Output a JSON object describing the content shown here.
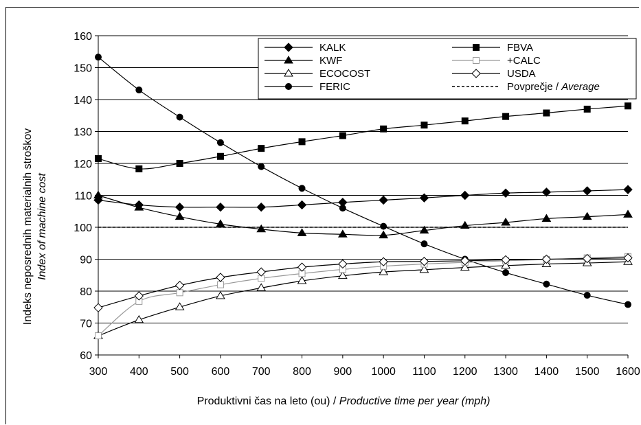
{
  "chart_data": {
    "type": "line",
    "x": [
      300,
      400,
      500,
      600,
      700,
      800,
      900,
      1000,
      1100,
      1200,
      1300,
      1400,
      1500,
      1600
    ],
    "xlim": [
      300,
      1600
    ],
    "ylim": [
      60,
      160
    ],
    "x_ticks": [
      "300",
      "400",
      "500",
      "600",
      "700",
      "800",
      "900",
      "1000",
      "1100",
      "1200",
      "1300",
      "1400",
      "1500",
      "1600"
    ],
    "y_ticks": [
      "60",
      "70",
      "80",
      "90",
      "100",
      "110",
      "120",
      "130",
      "140",
      "150",
      "160"
    ],
    "ylabel_line1": "Indeks neposrednih materialnih stroškov",
    "ylabel_line2": "Index of machine cost",
    "xlabel_plain": "Produktivni čas na leto (ou) / ",
    "xlabel_italic": "Productive time per year (mph)",
    "grid": "horizontal",
    "legend_position": "top-right",
    "series": [
      {
        "name": "KALK",
        "color": "#000000",
        "marker": "diamond-filled",
        "values": [
          108.5,
          107,
          106.3,
          106.3,
          106.3,
          107,
          107.8,
          108.5,
          109.2,
          110,
          110.7,
          111,
          111.4,
          111.8
        ]
      },
      {
        "name": "KWF",
        "color": "#000000",
        "marker": "triangle-filled",
        "values": [
          110,
          106.2,
          103.3,
          101,
          99.4,
          98.2,
          97.8,
          97.5,
          99,
          100.5,
          101.5,
          102.7,
          103.3,
          104
        ]
      },
      {
        "name": "ECOCOST",
        "color": "#000000",
        "marker": "triangle-open",
        "values": [
          66,
          71,
          75,
          78.5,
          81,
          83.2,
          84.8,
          86,
          86.7,
          87.4,
          88,
          88.5,
          88.8,
          89.2
        ]
      },
      {
        "name": "FERIC",
        "color": "#000000",
        "marker": "circle-filled",
        "values": [
          153.3,
          143,
          134.5,
          126.5,
          119,
          112.2,
          106,
          100.3,
          94.8,
          90,
          85.8,
          82.2,
          78.7,
          75.8
        ]
      },
      {
        "name": "FBVA",
        "color": "#000000",
        "marker": "square-filled",
        "values": [
          121.5,
          118.3,
          120,
          122.2,
          124.7,
          126.8,
          128.7,
          130.8,
          132,
          133.3,
          134.7,
          135.8,
          137,
          138
        ]
      },
      {
        "name": "+CALC",
        "color": "#999999",
        "marker": "square-open",
        "values": [
          66,
          76.8,
          79.5,
          82,
          84,
          85.5,
          86.8,
          87.8,
          88.5,
          89,
          89.5,
          89.9,
          90.4,
          90.8
        ]
      },
      {
        "name": "USDA",
        "color": "#000000",
        "marker": "diamond-open",
        "values": [
          74.8,
          78.5,
          81.8,
          84.3,
          86,
          87.5,
          88.5,
          89.2,
          89.3,
          89.5,
          89.8,
          90,
          90.2,
          90.4
        ]
      },
      {
        "name_plain": "Povprečje / ",
        "name_italic": "Average",
        "color": "#000000",
        "marker": "none",
        "dashed": true,
        "values": [
          100,
          100,
          100,
          100,
          100,
          100,
          100,
          100,
          100,
          100,
          100,
          100,
          100,
          100
        ]
      }
    ]
  }
}
